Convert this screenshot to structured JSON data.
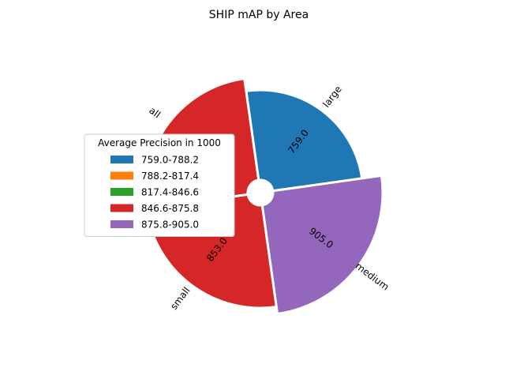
{
  "chart_data": {
    "type": "polar-bar",
    "title": "SHIP mAP by Area",
    "categories": [
      "large",
      "medium",
      "small",
      "all"
    ],
    "values": [
      759.0,
      905.0,
      853.0,
      852.0
    ],
    "value_labels": [
      "759.0",
      "905.0",
      "853.0",
      "852.0"
    ],
    "colors": [
      "#1f77b4",
      "#9467bd",
      "#d62728",
      "#d62728"
    ],
    "legend": {
      "title": "Average Precision in 1000",
      "placement": "left",
      "entries": [
        {
          "label": "759.0-788.2",
          "color": "#1f77b4"
        },
        {
          "label": "788.2-817.4",
          "color": "#ff7f0e"
        },
        {
          "label": "817.4-846.6",
          "color": "#2ca02c"
        },
        {
          "label": "846.6-875.8",
          "color": "#d62728"
        },
        {
          "label": "875.8-905.0",
          "color": "#9467bd"
        }
      ]
    },
    "grid": false
  }
}
